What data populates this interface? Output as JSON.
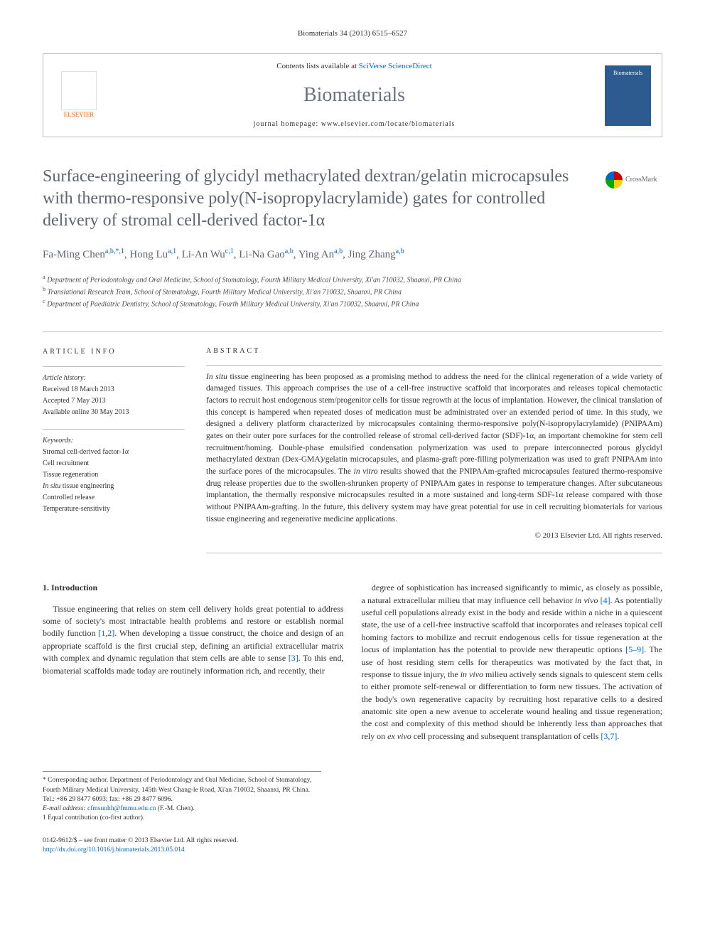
{
  "citation": "Biomaterials 34 (2013) 6515–6527",
  "header": {
    "contents_prefix": "Contents lists available at ",
    "contents_link": "SciVerse ScienceDirect",
    "journal": "Biomaterials",
    "homepage_prefix": "journal homepage: ",
    "homepage_url": "www.elsevier.com/locate/biomaterials",
    "publisher_name": "ELSEVIER",
    "cover_label": "Biomaterials"
  },
  "crossmark": "CrossMark",
  "title": "Surface-engineering of glycidyl methacrylated dextran/gelatin microcapsules with thermo-responsive poly(N-isopropylacrylamide) gates for controlled delivery of stromal cell-derived factor-1α",
  "authors_html": "Fa-Ming Chen<sup>a,b,*,1</sup>, Hong Lu<sup>a,1</sup>, Li-An Wu<sup>c,1</sup>, Li-Na Gao<sup>a,b</sup>, Ying An<sup>a,b</sup>, Jing Zhang<sup>a,b</sup>",
  "affiliations": [
    "a Department of Periodontology and Oral Medicine, School of Stomatology, Fourth Military Medical University, Xi'an 710032, Shaanxi, PR China",
    "b Translational Research Team, School of Stomatology, Fourth Military Medical University, Xi'an 710032, Shaanxi, PR China",
    "c Department of Paediatric Dentistry, School of Stomatology, Fourth Military Medical University, Xi'an 710032, Shaanxi, PR China"
  ],
  "info": {
    "heading": "ARTICLE INFO",
    "history_label": "Article history:",
    "history": [
      "Received 18 March 2013",
      "Accepted 7 May 2013",
      "Available online 30 May 2013"
    ],
    "keywords_label": "Keywords:",
    "keywords": [
      "Stromal cell-derived factor-1α",
      "Cell recruitment",
      "Tissue regeneration",
      "In situ tissue engineering",
      "Controlled release",
      "Temperature-sensitivity"
    ]
  },
  "abstract": {
    "heading": "ABSTRACT",
    "text": "In situ tissue engineering has been proposed as a promising method to address the need for the clinical regeneration of a wide variety of damaged tissues. This approach comprises the use of a cell-free instructive scaffold that incorporates and releases topical chemotactic factors to recruit host endogenous stem/progenitor cells for tissue regrowth at the locus of implantation. However, the clinical translation of this concept is hampered when repeated doses of medication must be administrated over an extended period of time. In this study, we designed a delivery platform characterized by microcapsules containing thermo-responsive poly(N-isopropylacrylamide) (PNIPAAm) gates on their outer pore surfaces for the controlled release of stromal cell-derived factor (SDF)-1α, an important chemokine for stem cell recruitment/homing. Double-phase emulsified condensation polymerization was used to prepare interconnected porous glycidyl methacrylated dextran (Dex-GMA)/gelatin microcapsules, and plasma-graft pore-filling polymerization was used to graft PNIPAAm into the surface pores of the microcapsules. The in vitro results showed that the PNIPAAm-grafted microcapsules featured thermo-responsive drug release properties due to the swollen-shrunken property of PNIPAAm gates in response to temperature changes. After subcutaneous implantation, the thermally responsive microcapsules resulted in a more sustained and long-term SDF-1α release compared with those without PNIPAAm-grafting. In the future, this delivery system may have great potential for use in cell recruiting biomaterials for various tissue engineering and regenerative medicine applications.",
    "copyright": "© 2013 Elsevier Ltd. All rights reserved."
  },
  "body": {
    "section_heading": "1. Introduction",
    "col1_html": "Tissue engineering that relies on stem cell delivery holds great potential to address some of society's most intractable health problems and restore or establish normal bodily function <a href='#'>[1,2]</a>. When developing a tissue construct, the choice and design of an appropriate scaffold is the first crucial step, defining an artificial extracellular matrix with complex and dynamic regulation that stem cells are able to sense <a href='#'>[3]</a>. To this end, biomaterial scaffolds made today are routinely information rich, and recently, their",
    "col2_html": "degree of sophistication has increased significantly to mimic, as closely as possible, a natural extracellular milieu that may influence cell behavior <i>in vivo</i> <a href='#'>[4]</a>. As potentially useful cell populations already exist in the body and reside within a niche in a quiescent state, the use of a cell-free instructive scaffold that incorporates and releases topical cell homing factors to mobilize and recruit endogenous cells for tissue regeneration at the locus of implantation has the potential to provide new therapeutic options <a href='#'>[5–9]</a>. The use of host residing stem cells for therapeutics was motivated by the fact that, in response to tissue injury, the <i>in vivo</i> milieu actively sends signals to quiescent stem cells to either promote self-renewal or differentiation to form new tissues. The activation of the body's own regenerative capacity by recruiting host reparative cells to a desired anatomic site open a new avenue to accelerate wound healing and tissue regeneration; the cost and complexity of this method should be inherently less than approaches that rely on <i>ex vivo</i> cell processing and subsequent transplantation of cells <a href='#'>[3,7]</a>."
  },
  "footnotes": {
    "corresponding": "* Corresponding author. Department of Periodontology and Oral Medicine, School of Stomatology, Fourth Military Medical University, 145th West Chang-le Road, Xi'an 710032, Shaanxi, PR China. Tel.: +86 29 8477 6093; fax: +86 29 8477 6096.",
    "email_label": "E-mail address: ",
    "email": "cfmsunhh@fmmu.edu.cn",
    "email_author": " (F.-M. Chen).",
    "equal": "1 Equal contribution (co-first author)."
  },
  "footer": {
    "issn_line": "0142-9612/$ – see front matter © 2013 Elsevier Ltd. All rights reserved.",
    "doi": "http://dx.doi.org/10.1016/j.biomaterials.2013.05.014"
  },
  "colors": {
    "link": "#0066cc",
    "heading_gray": "#5d6570",
    "border": "#bfbfbf",
    "elsevier_orange": "#ff6600"
  }
}
